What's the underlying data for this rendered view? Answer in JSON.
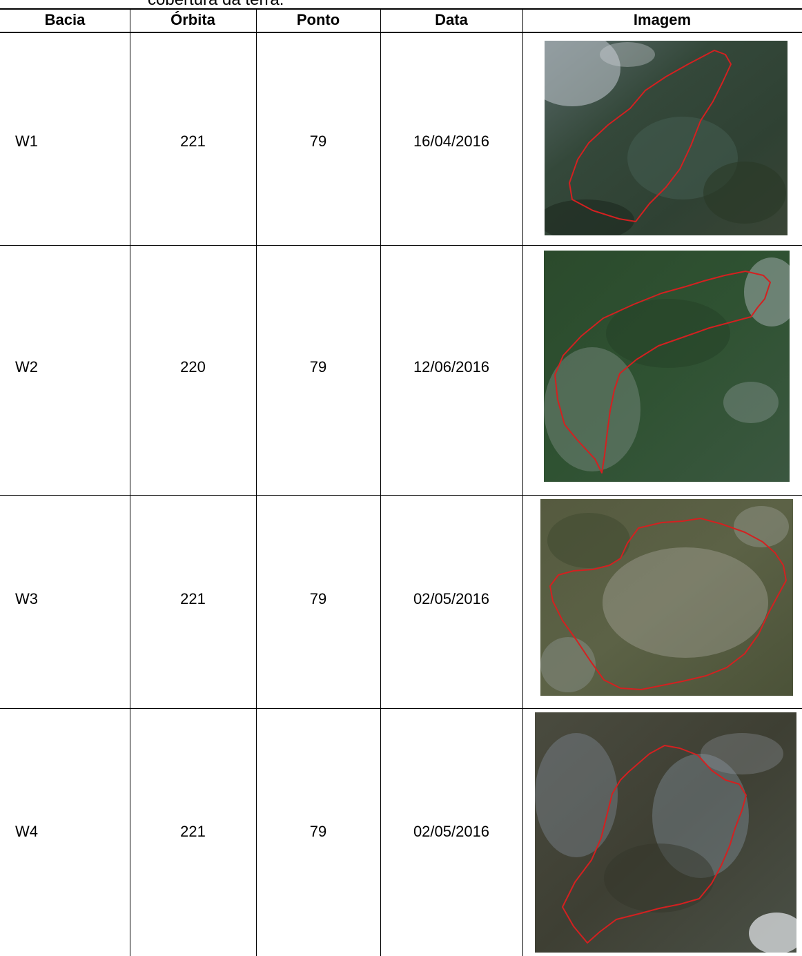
{
  "caption_fragment": "cobertura da terra.",
  "headers": {
    "bacia": "Bacia",
    "orbita": "Órbita",
    "ponto": "Ponto",
    "data": "Data",
    "imagem": "Imagem"
  },
  "rows": [
    {
      "bacia": "W1",
      "orbita": "221",
      "ponto": "79",
      "data": "16/04/2016"
    },
    {
      "bacia": "W2",
      "orbita": "220",
      "ponto": "79",
      "data": "12/06/2016"
    },
    {
      "bacia": "W3",
      "orbita": "221",
      "ponto": "79",
      "data": "02/05/2016"
    },
    {
      "bacia": "W4",
      "orbita": "221",
      "ponto": "79",
      "data": "02/05/2016"
    }
  ],
  "colors": {
    "boundary": "#d42020",
    "terrain_dark": "#2d3d2c",
    "terrain_mid": "#3f5a3f",
    "terrain_light": "#b8c0c8"
  }
}
